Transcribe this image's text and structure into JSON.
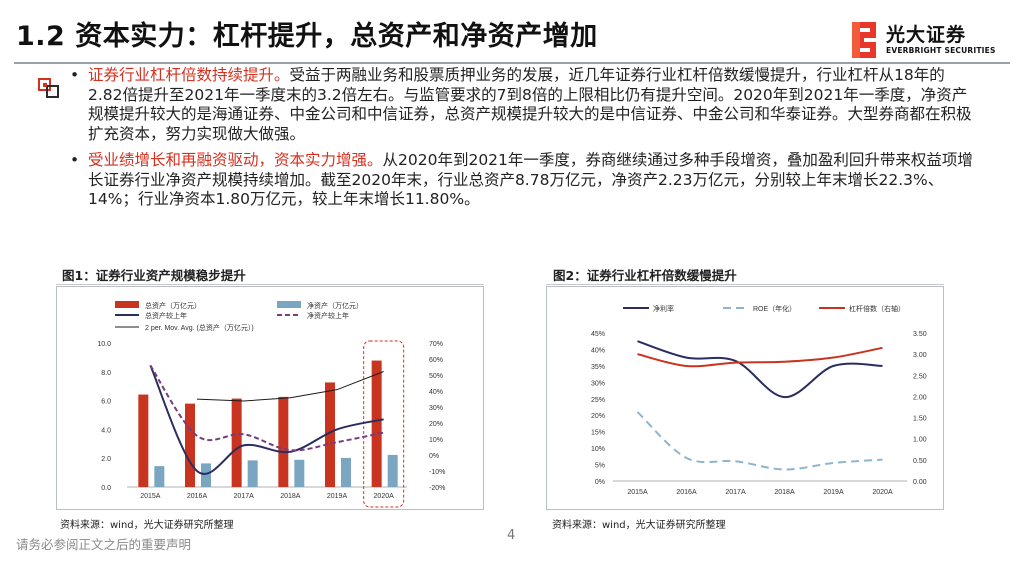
{
  "header": {
    "title": "1.2 资本实力：杠杆提升，总资产和净资产增加",
    "logo_text": "光大证券",
    "logo_sub": "EVERBRIGHT SECURITIES"
  },
  "bullets": [
    {
      "highlight": "证券行业杠杆倍数持续提升。",
      "text": "受益于两融业务和股票质押业务的发展，近几年证券行业杠杆倍数缓慢提升，行业杠杆从18年的2.82倍提升至2021年一季度末的3.2倍左右。与监管要求的7到8倍的上限相比仍有提升空间。2020年到2021年一季度，净资产规模提升较大的是海通证券、中金公司和中信证券，总资产规模提升较大的是中信证券、中金公司和华泰证券。大型券商都在积极扩充资本，努力实现做大做强。"
    },
    {
      "highlight": "受业绩增长和再融资驱动，资本实力增强。",
      "text": "从2020年到2021年一季度，券商继续通过多种手段增资，叠加盈利回升带来权益项增长证券行业净资产规模持续增加。截至2020年末，行业总资产8.78万亿元，净资产2.23万亿元，分别较上年末增长22.3%、14%；行业净资本1.80万亿元，较上年末增长11.80%。"
    }
  ],
  "figures": [
    {
      "title": "图1：证券行业资产规模稳步提升",
      "source": "资料来源：wind，光大证券研究所整理"
    },
    {
      "title": "图2：证券行业杠杆倍数缓慢提升",
      "source": "资料来源：wind，光大证券研究所整理"
    }
  ],
  "footer": {
    "note": "请务必参阅正文之后的重要声明",
    "page": "4"
  },
  "colors": {
    "red": "#c8341f",
    "blue": "#7aa6c2",
    "navy": "#2b2d5e",
    "purple": "#7a3b7f",
    "line_dark": "#1c1c1c",
    "text_red": "#d6301f"
  },
  "chart_data": [
    {
      "type": "bar",
      "categories": [
        "2015A",
        "2016A",
        "2017A",
        "2018A",
        "2019A",
        "2020A"
      ],
      "ylim_left": [
        0,
        10
      ],
      "yticks_left": [
        "0.0",
        "2.0",
        "4.0",
        "6.0",
        "8.0",
        "10.0"
      ],
      "ylim_right": [
        -20,
        70
      ],
      "yticks_right": [
        "-20%",
        "-10%",
        "0%",
        "10%",
        "20%",
        "30%",
        "40%",
        "50%",
        "60%",
        "70%"
      ],
      "series": [
        {
          "name": "总资产（万亿元）",
          "kind": "bar",
          "axis": "left",
          "values": [
            6.42,
            5.79,
            6.14,
            6.26,
            7.26,
            8.78
          ]
        },
        {
          "name": "净资产（万亿元）",
          "kind": "bar",
          "axis": "left",
          "values": [
            1.45,
            1.64,
            1.85,
            1.89,
            2.02,
            2.23
          ]
        },
        {
          "name": "总资产较上年",
          "kind": "line",
          "axis": "right",
          "values": [
            56,
            -10,
            6,
            2,
            16,
            22.3
          ]
        },
        {
          "name": "净资产较上年",
          "kind": "line",
          "axis": "right",
          "values": [
            56,
            12,
            13,
            3,
            8,
            14
          ]
        },
        {
          "name": "2 per. Mov. Avg. (总资产（万亿元）)",
          "kind": "line",
          "axis": "left",
          "values": [
            null,
            6.1,
            5.97,
            6.2,
            6.76,
            8.02
          ]
        }
      ],
      "highlight_category": "2020A"
    },
    {
      "type": "line",
      "categories": [
        "2015A",
        "2016A",
        "2017A",
        "2018A",
        "2019A",
        "2020A"
      ],
      "ylim_left": [
        0,
        45
      ],
      "yticks_left": [
        "0%",
        "5%",
        "10%",
        "15%",
        "20%",
        "25%",
        "30%",
        "35%",
        "40%",
        "45%"
      ],
      "ylim_right": [
        0,
        3.5
      ],
      "yticks_right": [
        "0.00",
        "0.50",
        "1.00",
        "1.50",
        "2.00",
        "2.50",
        "3.00",
        "3.50"
      ],
      "series": [
        {
          "name": "净利率",
          "axis": "left",
          "values": [
            42.5,
            37.5,
            36.5,
            25.5,
            35,
            35
          ]
        },
        {
          "name": "ROE（年化）",
          "axis": "left",
          "values": [
            21,
            7,
            6,
            3.5,
            5.5,
            6.5
          ]
        },
        {
          "name": "杠杆倍数（右轴）",
          "axis": "right",
          "values": [
            3.0,
            2.72,
            2.8,
            2.82,
            2.92,
            3.15
          ]
        }
      ]
    }
  ]
}
